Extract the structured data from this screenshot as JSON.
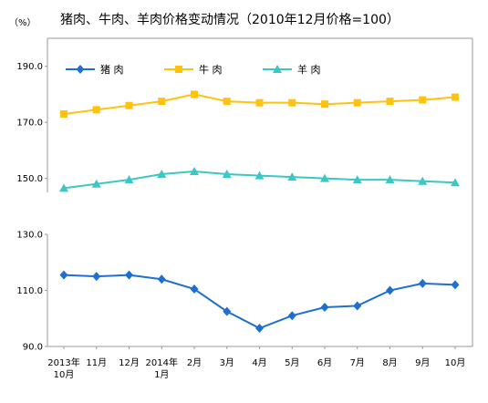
{
  "chart_data": {
    "type": "line",
    "title": "猪肉、牛肉、羊肉价格变动情况（2010年12月价格=100）",
    "unit_label": "（%）",
    "categories": [
      [
        "2013年",
        "10月"
      ],
      [
        "11月"
      ],
      [
        "12月"
      ],
      [
        "2014年",
        "1月"
      ],
      [
        "2月"
      ],
      [
        "3月"
      ],
      [
        "4月"
      ],
      [
        "5月"
      ],
      [
        "6月"
      ],
      [
        "7月"
      ],
      [
        "8月"
      ],
      [
        "9月"
      ],
      [
        "10月"
      ]
    ],
    "y_ticks": [
      "90.0",
      "110.0",
      "130.0",
      "150.0",
      "170.0",
      "190.0"
    ],
    "ylim": [
      90,
      200
    ],
    "y_break": [
      130,
      145
    ],
    "grid": false,
    "legend_position": "top-left",
    "series": [
      {
        "name": "猪 肉",
        "color": "#1f6fd1",
        "marker": "diamond",
        "values": [
          115.5,
          115.0,
          115.5,
          114.0,
          110.5,
          102.5,
          96.5,
          101.0,
          104.0,
          104.5,
          110.0,
          112.5,
          112.0
        ]
      },
      {
        "name": "牛 肉",
        "color": "#ffc20e",
        "marker": "square",
        "values": [
          173.0,
          174.5,
          176.0,
          177.5,
          180.0,
          177.5,
          177.0,
          177.0,
          176.5,
          177.0,
          177.5,
          178.0,
          179.0
        ]
      },
      {
        "name": "羊 肉",
        "color": "#3cc7c7",
        "marker": "triangle",
        "values": [
          146.5,
          148.0,
          149.5,
          151.5,
          152.5,
          151.5,
          151.0,
          150.5,
          150.0,
          149.5,
          149.5,
          149.0,
          148.5
        ]
      }
    ]
  }
}
